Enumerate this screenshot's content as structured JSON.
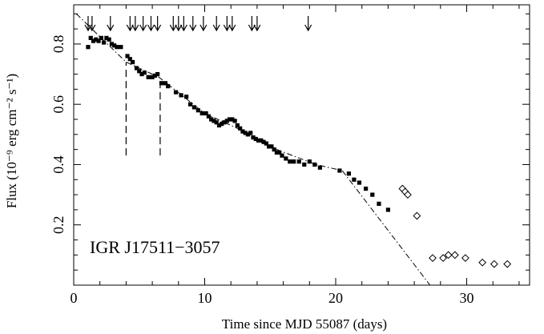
{
  "chart_data": {
    "type": "scatter",
    "title": "",
    "annotation": "IGR J17511−3057",
    "xlabel": "Time since MJD 55087 (days)",
    "ylabel": "Flux (10⁻⁹ erg cm⁻² s⁻¹)",
    "xlim": [
      0,
      34.8
    ],
    "ylim": [
      0,
      0.93
    ],
    "grid": false,
    "x_major_ticks": [
      0,
      10,
      20,
      30
    ],
    "x_minor_step": 2,
    "y_major_ticks": [
      0.2,
      0.4,
      0.6,
      0.8
    ],
    "y_minor_step": 0.05,
    "x_tick_labels": [
      "0",
      "10",
      "20",
      "30"
    ],
    "y_tick_labels": [
      "0.2",
      "0.4",
      "0.6",
      "0.8"
    ],
    "series": [
      {
        "marker": "filled-square",
        "x": [
          1.1,
          1.3,
          1.5,
          1.7,
          1.9,
          2.1,
          2.3,
          2.5,
          2.7,
          2.9,
          3.1,
          3.3,
          3.6,
          4.1,
          4.3,
          4.5,
          4.8,
          5.0,
          5.2,
          5.4,
          5.7,
          6.0,
          6.2,
          6.4,
          6.7,
          7.0,
          7.2,
          7.8,
          8.2,
          8.6,
          8.9,
          9.2,
          9.5,
          9.8,
          10.1,
          10.3,
          10.5,
          10.7,
          10.9,
          11.1,
          11.3,
          11.5,
          11.7,
          11.9,
          12.1,
          12.3,
          12.5,
          12.7,
          12.9,
          13.1,
          13.3,
          13.5,
          13.7,
          13.9,
          14.1,
          14.3,
          14.5,
          14.7,
          14.9,
          15.1,
          15.3,
          15.5,
          15.7,
          15.9,
          16.2,
          16.5,
          16.8,
          17.2,
          17.6,
          18.0,
          18.4,
          18.8,
          20.3,
          21.0,
          21.4,
          21.8,
          22.3,
          22.8,
          23.3,
          24.0
        ],
        "y": [
          0.79,
          0.82,
          0.81,
          0.815,
          0.81,
          0.82,
          0.805,
          0.82,
          0.815,
          0.8,
          0.795,
          0.79,
          0.79,
          0.76,
          0.75,
          0.74,
          0.72,
          0.71,
          0.7,
          0.705,
          0.69,
          0.69,
          0.695,
          0.7,
          0.67,
          0.67,
          0.66,
          0.64,
          0.63,
          0.625,
          0.6,
          0.59,
          0.58,
          0.57,
          0.57,
          0.56,
          0.55,
          0.545,
          0.54,
          0.53,
          0.535,
          0.54,
          0.545,
          0.55,
          0.55,
          0.545,
          0.53,
          0.52,
          0.51,
          0.505,
          0.5,
          0.505,
          0.49,
          0.485,
          0.48,
          0.48,
          0.475,
          0.47,
          0.46,
          0.46,
          0.45,
          0.44,
          0.44,
          0.43,
          0.42,
          0.41,
          0.41,
          0.41,
          0.4,
          0.41,
          0.4,
          0.39,
          0.38,
          0.37,
          0.35,
          0.34,
          0.32,
          0.3,
          0.27,
          0.25
        ]
      },
      {
        "marker": "open-diamond",
        "x": [
          25.1,
          25.3,
          25.5,
          26.2,
          27.4,
          28.2,
          28.6,
          29.1,
          29.9,
          31.2,
          32.1,
          33.1
        ],
        "y": [
          0.32,
          0.31,
          0.3,
          0.23,
          0.09,
          0.09,
          0.1,
          0.1,
          0.09,
          0.075,
          0.07,
          0.07
        ]
      }
    ],
    "fit_lines": [
      {
        "style": "dash-dot",
        "points": [
          [
            0.2,
            0.9
          ],
          [
            4.0,
            0.74
          ],
          [
            6.5,
            0.69
          ],
          [
            10,
            0.57
          ],
          [
            13,
            0.51
          ],
          [
            15.5,
            0.45
          ],
          [
            18.5,
            0.4
          ],
          [
            20.5,
            0.38
          ],
          [
            27.2,
            0
          ]
        ]
      }
    ],
    "vertical_dashed_lines": [
      {
        "x": 4.0,
        "y_from": 0.43,
        "y_to": 0.74
      },
      {
        "x": 6.6,
        "y_from": 0.43,
        "y_to": 0.69
      }
    ],
    "arrows_down": [
      1.1,
      1.4,
      2.8,
      4.3,
      4.7,
      5.3,
      5.9,
      6.4,
      7.6,
      8.0,
      8.4,
      9.1,
      9.9,
      10.9,
      11.7,
      12.1,
      13.6,
      14.0,
      17.9
    ]
  }
}
